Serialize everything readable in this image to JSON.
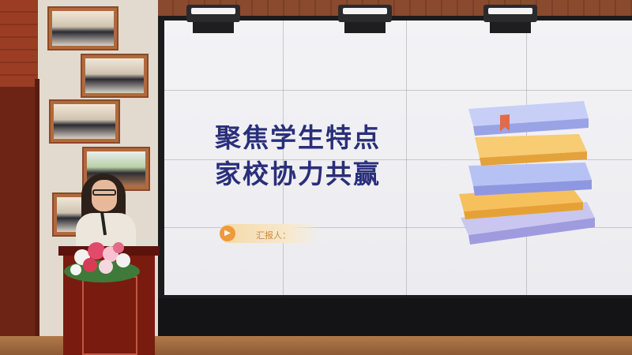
{
  "slide": {
    "title_line1": "聚焦学生特点",
    "title_line2": "家校协力共赢",
    "reporter_label": "汇报人：",
    "title_color": "#2a2f7a",
    "accent_color": "#ef9a3a"
  },
  "scene": {
    "wall_color": "#e2d9cf",
    "podium_color": "#7a1b10",
    "screen_border_color": "#1b1b1d"
  },
  "icons": {
    "play": "play-icon",
    "books": "stacked-books-icon"
  }
}
